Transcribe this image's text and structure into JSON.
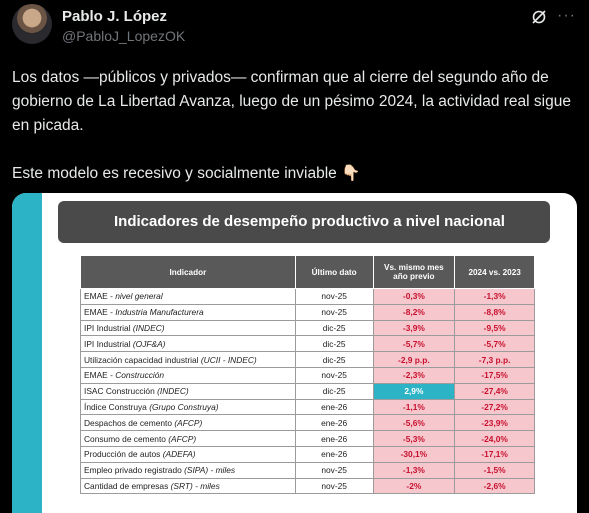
{
  "author": {
    "name": "Pablo J. López",
    "handle": "@PabloJ_LopezOK"
  },
  "icons": {
    "grok": "grok-icon",
    "more": "more-icon"
  },
  "tweet": {
    "paragraph1": "Los datos —públicos y privados— confirman que al cierre del segundo año de gobierno de La Libertad Avanza, luego de un pésimo 2024, la actividad real sigue en picada.",
    "paragraph2": "Este modelo es recesivo y socialmente inviable 👇🏻"
  },
  "image": {
    "title": "Indicadores de desempeño productivo a nivel nacional",
    "accent_color": "#2db3c6",
    "negative_color": "#c8102e",
    "negative_bg": "#f6c7cd",
    "headers": [
      "Indicador",
      "Último dato",
      "Vs. mismo mes año previo",
      "2024 vs. 2023"
    ],
    "rows": [
      {
        "name": "EMAE",
        "detail": "nivel general",
        "sep": " - ",
        "date": "nov-25",
        "yoy": "-0,3%",
        "y2024": "-1,3%"
      },
      {
        "name": "EMAE",
        "detail": "Industria Manufacturera",
        "sep": " - ",
        "date": "nov-25",
        "yoy": "-8,2%",
        "y2024": "-8,8%"
      },
      {
        "name": "IPI Industrial",
        "detail": "(INDEC)",
        "sep": " ",
        "date": "dic-25",
        "yoy": "-3,9%",
        "y2024": "-9,5%"
      },
      {
        "name": "IPI Industrial",
        "detail": "(OJF&A)",
        "sep": " ",
        "date": "dic-25",
        "yoy": "-5,7%",
        "y2024": "-5,7%"
      },
      {
        "name": "Utilización capacidad industrial",
        "detail": "(UCII - INDEC)",
        "sep": " ",
        "date": "dic-25",
        "yoy": "-2,9 p.p.",
        "y2024": "-7,3 p.p."
      },
      {
        "name": "EMAE",
        "detail": "Construcción",
        "sep": " - ",
        "date": "nov-25",
        "yoy": "-2,3%",
        "y2024": "-17,5%"
      },
      {
        "name": "ISAC Construcción",
        "detail": "(INDEC)",
        "sep": " ",
        "date": "dic-25",
        "yoy": "2,9%",
        "y2024": "-27,4%"
      },
      {
        "name": "Índice Construya",
        "detail": "(Grupo Construya)",
        "sep": " ",
        "date": "ene-26",
        "yoy": "-1,1%",
        "y2024": "-27,2%"
      },
      {
        "name": "Despachos de cemento",
        "detail": "(AFCP)",
        "sep": " ",
        "date": "ene-26",
        "yoy": "-5,6%",
        "y2024": "-23,9%"
      },
      {
        "name": "Consumo de cemento",
        "detail": "(AFCP)",
        "sep": " ",
        "date": "ene-26",
        "yoy": "-5,3%",
        "y2024": "-24,0%"
      },
      {
        "name": "Producción de autos",
        "detail": "(ADEFA)",
        "sep": " ",
        "date": "ene-26",
        "yoy": "-30,1%",
        "y2024": "-17,1%"
      },
      {
        "name": "Empleo privado registrado",
        "detail": "(SIPA) - miles",
        "sep": " ",
        "date": "nov-25",
        "yoy": "-1,3%",
        "y2024": "-1,5%"
      },
      {
        "name": "Cantidad de empresas",
        "detail": "(SRT) - miles",
        "sep": " ",
        "date": "nov-25",
        "yoy": "-2%",
        "y2024": "-2,6%"
      }
    ]
  }
}
